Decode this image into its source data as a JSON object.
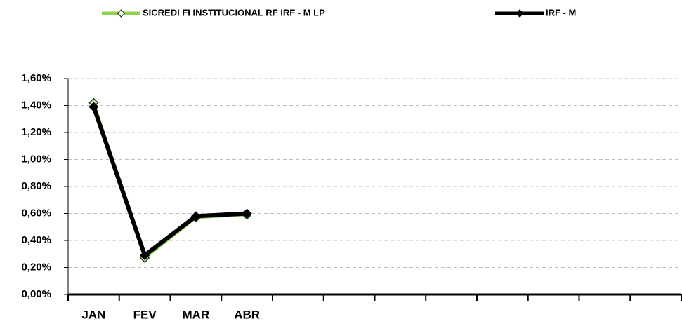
{
  "chart_data": {
    "type": "line",
    "categories": [
      "JAN",
      "FEV",
      "MAR",
      "ABR",
      null,
      null,
      null,
      null,
      null,
      null,
      null,
      null
    ],
    "series": [
      {
        "name": "SICREDI FI INSTITUCIONAL RF IRF - M LP",
        "color": "#92d050",
        "values": [
          1.42,
          0.27,
          0.57,
          0.59,
          null,
          null,
          null,
          null,
          null,
          null,
          null,
          null
        ]
      },
      {
        "name": "IRF - M",
        "color": "#000000",
        "values": [
          1.39,
          0.29,
          0.58,
          0.6,
          null,
          null,
          null,
          null,
          null,
          null,
          null,
          null
        ]
      }
    ],
    "ylim": [
      0,
      1.6
    ],
    "yticks": [
      {
        "value": 0,
        "label": "0,00%"
      },
      {
        "value": 0.2,
        "label": "0,20%"
      },
      {
        "value": 0.4,
        "label": "0,40%"
      },
      {
        "value": 0.6,
        "label": "0,60%"
      },
      {
        "value": 0.8,
        "label": "0,80%"
      },
      {
        "value": 1.0,
        "label": "1,00%"
      },
      {
        "value": 1.2,
        "label": "1,20%"
      },
      {
        "value": 1.4,
        "label": "1,40%"
      },
      {
        "value": 1.6,
        "label": "1,60%"
      }
    ],
    "grid": true,
    "legend": "top"
  }
}
